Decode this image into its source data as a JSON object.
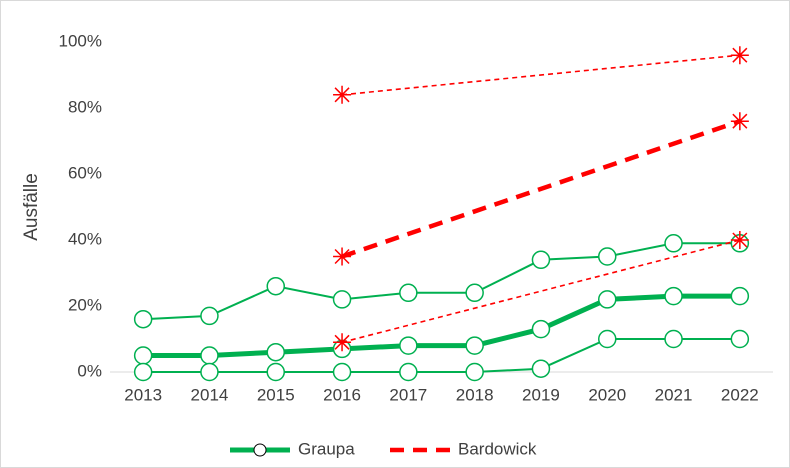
{
  "chart_data": {
    "type": "line",
    "y_label": "Ausfälle",
    "categories": [
      "2013",
      "2014",
      "2015",
      "2016",
      "2017",
      "2018",
      "2019",
      "2020",
      "2021",
      "2022"
    ],
    "ylim": [
      0,
      100
    ],
    "yticks": [
      {
        "value": 0,
        "label": "0%"
      },
      {
        "value": 20,
        "label": "20%"
      },
      {
        "value": 40,
        "label": "40%"
      },
      {
        "value": 60,
        "label": "60%"
      },
      {
        "value": 80,
        "label": "80%"
      },
      {
        "value": 100,
        "label": "100%"
      }
    ],
    "grid": false,
    "legend": "bottom",
    "series": [
      {
        "name": "Graupa",
        "color": "#00b050",
        "marker": "circle",
        "dash": false,
        "lines": [
          [
            16,
            17,
            26,
            22,
            24,
            24,
            34,
            35,
            39,
            39
          ],
          [
            5,
            5,
            6,
            7,
            8,
            8,
            13,
            22,
            23,
            23
          ],
          [
            0,
            0,
            0,
            0,
            0,
            0,
            1,
            10,
            10,
            10
          ]
        ]
      },
      {
        "name": "Bardowick",
        "color": "#ff0000",
        "marker": "star",
        "dash": true,
        "lines": [
          [
            null,
            null,
            null,
            84,
            null,
            null,
            null,
            null,
            null,
            96
          ],
          [
            null,
            null,
            null,
            35,
            null,
            null,
            null,
            null,
            null,
            76
          ],
          [
            null,
            null,
            null,
            9,
            null,
            null,
            null,
            null,
            null,
            40
          ]
        ]
      }
    ]
  }
}
